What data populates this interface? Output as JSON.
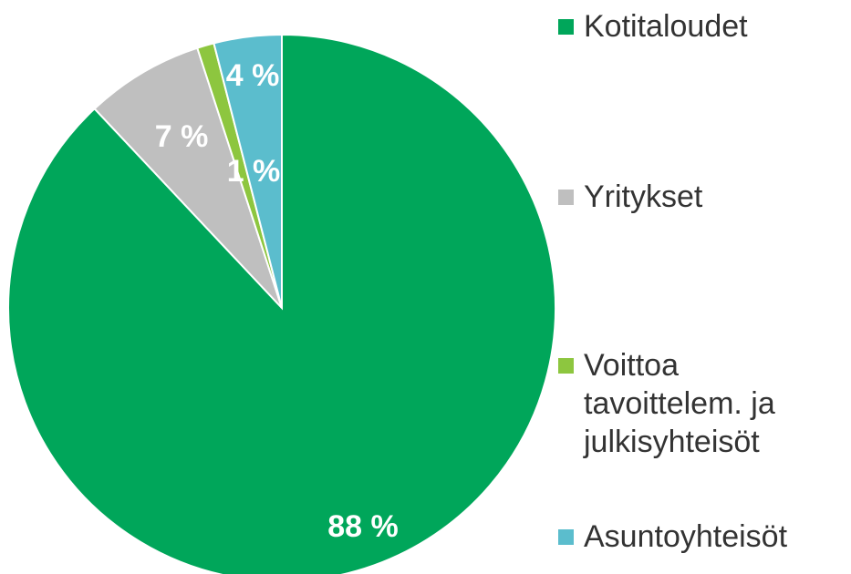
{
  "chart_data": {
    "type": "pie",
    "categories": [
      "Kotitaloudet",
      "Yritykset",
      "Voittoa tavoittelem. ja julkisyhteisöt",
      "Asuntoyhteisöt"
    ],
    "values": [
      88,
      7,
      1,
      4
    ],
    "value_labels": [
      "88 %",
      "7 %",
      "1 %",
      "4 %"
    ],
    "colors": [
      "#00a65a",
      "#bfbfbf",
      "#8dc63f",
      "#5bbdcd"
    ],
    "legend": "right"
  }
}
